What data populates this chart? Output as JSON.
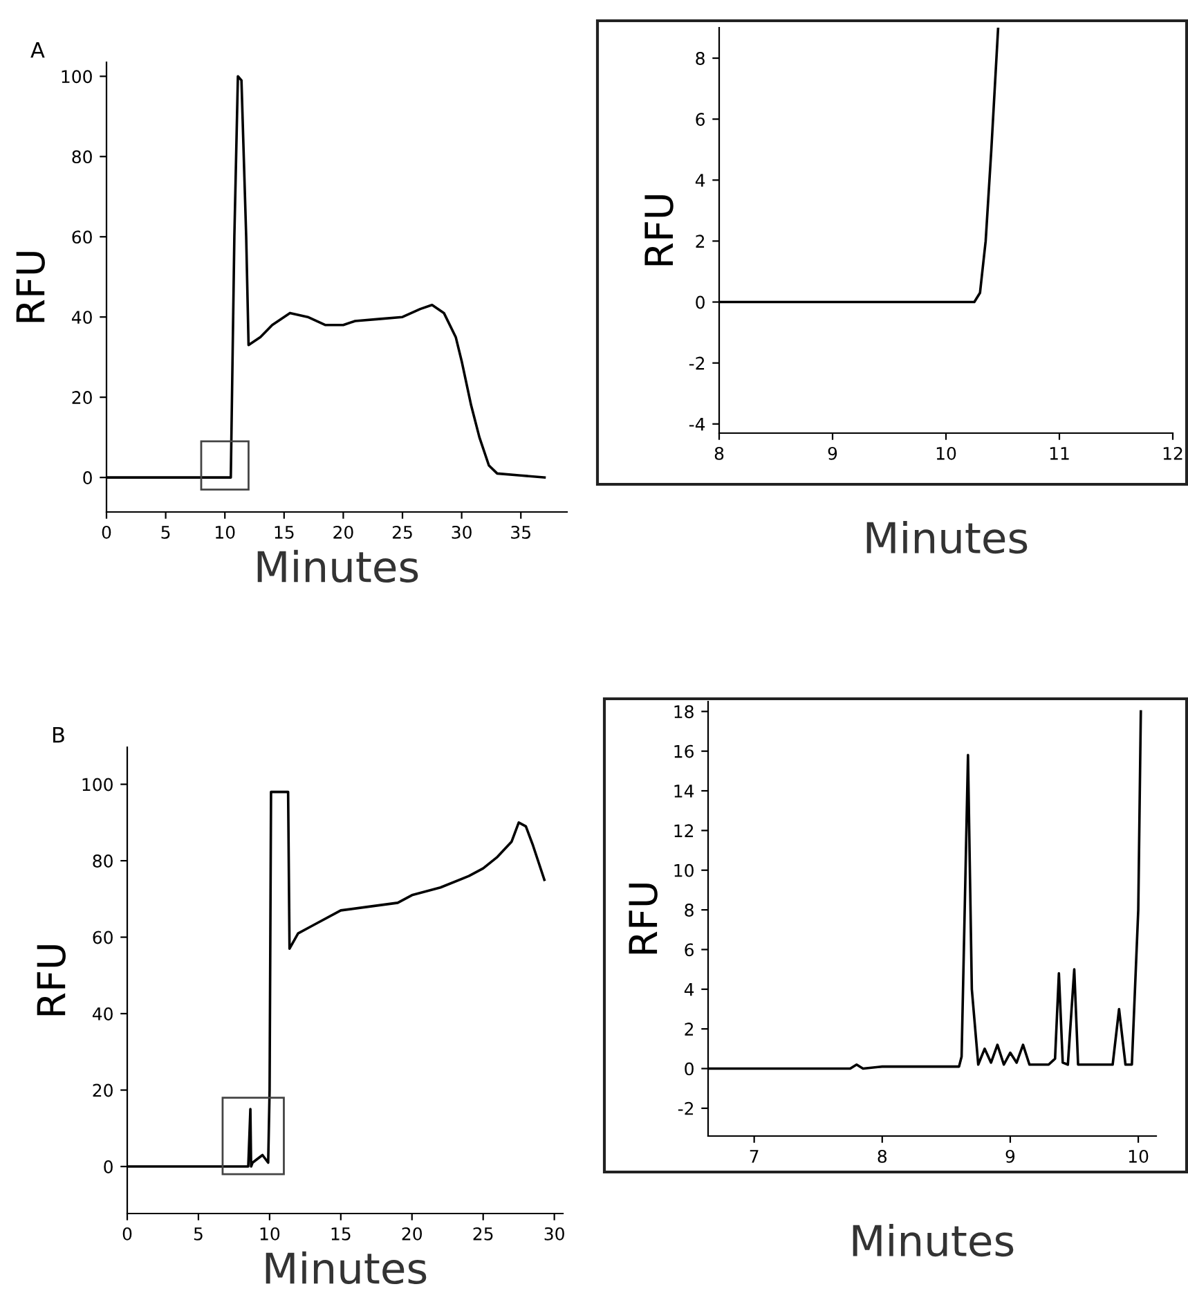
{
  "chart_data": [
    {
      "type": "line",
      "title": "A",
      "xlabel": "Minutes",
      "ylabel": "RFU",
      "xlim": [
        0,
        38.9
      ],
      "ylim": [
        -8.6,
        103.5
      ],
      "xticks": [
        0,
        5,
        10,
        15,
        20,
        25,
        30,
        35
      ],
      "yticks": [
        0,
        20,
        40,
        60,
        80,
        100
      ],
      "grid": false,
      "legend": false,
      "series": [
        {
          "color": "#000000",
          "x": [
            0,
            10.5,
            10.8,
            11.1,
            11.4,
            11.8,
            12.0,
            13,
            14,
            15.5,
            17,
            18.5,
            20,
            21,
            23,
            25,
            26.5,
            27.5,
            28.5,
            29.5,
            30,
            30.8,
            31.5,
            32.3,
            33,
            35,
            37
          ],
          "values": [
            0,
            0,
            60,
            100,
            99,
            60,
            33,
            35,
            38,
            41,
            40,
            38,
            38,
            39,
            39.5,
            40,
            42,
            43,
            41,
            35,
            29,
            18,
            10,
            3,
            1,
            0.5,
            0
          ]
        }
      ]
    },
    {
      "type": "line",
      "ylabel": "RFU",
      "xlabel": "Minutes",
      "xlim": [
        8,
        12
      ],
      "ylim": [
        -4.3,
        9.0
      ],
      "xticks": [
        8,
        9,
        10,
        11,
        12
      ],
      "yticks": [
        {
          "value": 8,
          "label": "8"
        },
        {
          "value": 6,
          "label": "6"
        },
        {
          "value": 4,
          "label": "4"
        },
        {
          "value": 2,
          "label": "2"
        },
        {
          "value": 0,
          "label": "0"
        },
        {
          "value": -2,
          "label": "-2"
        },
        {
          "value": -4,
          "label": "-4"
        }
      ],
      "grid": false,
      "legend": false,
      "series": [
        {
          "color": "#000000",
          "x": [
            8,
            10.25,
            10.3,
            10.35,
            10.4,
            10.46
          ],
          "values": [
            0,
            0,
            0.3,
            2,
            5,
            9
          ]
        }
      ]
    },
    {
      "type": "line",
      "title": "B",
      "xlabel": "Minutes",
      "ylabel": "RFU",
      "xlim": [
        0,
        30.6
      ],
      "ylim": [
        -12.3,
        109.7
      ],
      "xticks": [
        0,
        5,
        10,
        15,
        20,
        25,
        30
      ],
      "yticks": [
        0,
        20,
        40,
        60,
        80,
        100
      ],
      "grid": false,
      "legend": false,
      "series": [
        {
          "color": "#000000",
          "x": [
            0,
            8.5,
            8.65,
            8.7,
            8.8,
            9.5,
            9.9,
            10.0,
            10.1,
            11.3,
            11.4,
            12,
            13,
            15,
            17,
            19,
            20,
            22,
            24,
            25,
            26,
            27,
            27.5,
            28,
            28.5,
            29.3
          ],
          "values": [
            0,
            0,
            15,
            0,
            1,
            3,
            1,
            20,
            98,
            98,
            57,
            61,
            63,
            67,
            68,
            69,
            71,
            73,
            76,
            78,
            81,
            85,
            90,
            89,
            84,
            75
          ]
        }
      ]
    },
    {
      "type": "line",
      "xlabel": "Minutes",
      "ylabel": "RFU",
      "xlim": [
        6.64,
        10.14
      ],
      "ylim": [
        -3.4,
        18.5
      ],
      "xticks": [
        7,
        8,
        9,
        10
      ],
      "yticks": [
        {
          "value": -2,
          "label": "-2"
        },
        0,
        2,
        4,
        6,
        8,
        10,
        12,
        14,
        16,
        18
      ],
      "grid": false,
      "legend": false,
      "series": [
        {
          "color": "#000000",
          "x": [
            6.64,
            7.75,
            7.8,
            7.85,
            8.0,
            8.2,
            8.6,
            8.62,
            8.67,
            8.7,
            8.75,
            8.8,
            8.85,
            8.9,
            8.95,
            9.0,
            9.05,
            9.1,
            9.15,
            9.2,
            9.3,
            9.35,
            9.38,
            9.41,
            9.45,
            9.5,
            9.53,
            9.6,
            9.8,
            9.85,
            9.9,
            9.95,
            10.0,
            10.02
          ],
          "values": [
            0,
            0,
            0.2,
            0,
            0.1,
            0.1,
            0.1,
            0.6,
            15.8,
            4,
            0.2,
            1,
            0.3,
            1.2,
            0.2,
            0.8,
            0.3,
            1.2,
            0.2,
            0.2,
            0.2,
            0.5,
            4.8,
            0.3,
            0.2,
            5,
            0.2,
            0.2,
            0.2,
            3,
            0.2,
            0.2,
            8,
            18
          ]
        }
      ]
    }
  ]
}
